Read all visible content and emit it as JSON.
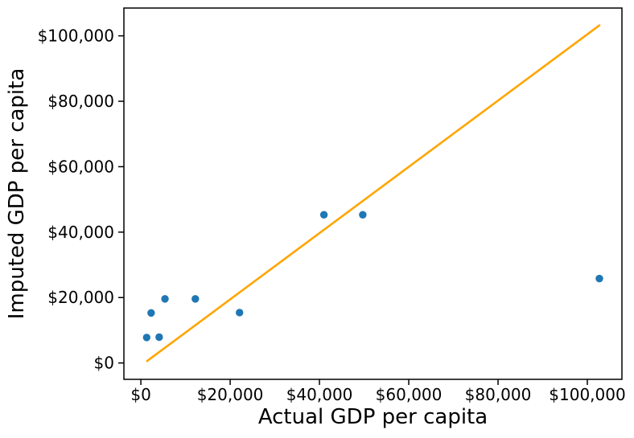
{
  "chart_data": {
    "type": "scatter",
    "title": "",
    "xlabel": "Actual GDP per capita",
    "ylabel": "Imputed GDP per capita",
    "x_tick_values": [
      0,
      20000,
      40000,
      60000,
      80000,
      100000
    ],
    "x_tick_labels": [
      "$0",
      "$20,000",
      "$40,000",
      "$60,000",
      "$80,000",
      "$100,000"
    ],
    "y_tick_values": [
      0,
      20000,
      40000,
      60000,
      80000,
      100000
    ],
    "y_tick_labels": [
      "$0",
      "$20,000",
      "$40,000",
      "$60,000",
      "$80,000",
      "$100,000"
    ],
    "xlim": [
      -3800,
      107750
    ],
    "ylim": [
      -5000,
      108500
    ],
    "grid": false,
    "legend": "none",
    "marker_color": "#1f77b4",
    "line_color": "#ffa500",
    "spine_color": "#000000",
    "points": [
      {
        "x": 1300,
        "y": 7800
      },
      {
        "x": 4100,
        "y": 7900
      },
      {
        "x": 2300,
        "y": 15300
      },
      {
        "x": 5400,
        "y": 19600
      },
      {
        "x": 12200,
        "y": 19600
      },
      {
        "x": 22100,
        "y": 15400
      },
      {
        "x": 41000,
        "y": 45300
      },
      {
        "x": 49700,
        "y": 45300
      },
      {
        "x": 102700,
        "y": 25800
      }
    ],
    "fit_line": {
      "x1": 1400,
      "y1": 600,
      "x2": 102700,
      "y2": 103200
    }
  }
}
